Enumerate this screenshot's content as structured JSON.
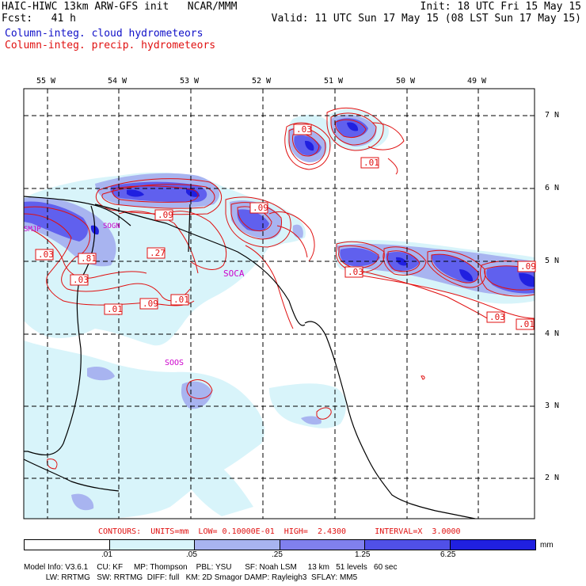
{
  "header": {
    "left_line1": "HAIC-HIWC 13km ARW-GFS init   NCAR/MMM",
    "left_line2": "Fcst:   41 h",
    "right_line1": "Init: 18 UTC Fri 15 May 15",
    "right_line2": "Valid: 11 UTC Sun 17 May 15 (08 LST Sun 17 May 15)",
    "legend_cloud": "Column-integ. cloud hydrometeors",
    "legend_precip": "Column-integ. precip. hydrometeors"
  },
  "colors": {
    "cloud_light": "#d8f4fa",
    "cloud_mid": "#a8b4f0",
    "cloud_dark": "#6060ee",
    "cloud_max": "#2020e0",
    "contour": "#e01010",
    "place_label": "#cc00cc"
  },
  "lon_labels": [
    "55 W",
    "54 W",
    "53 W",
    "52 W",
    "51 W",
    "50 W",
    "49 W"
  ],
  "lat_labels": [
    "7 N",
    "6 N",
    "5 N",
    "4 N",
    "3 N",
    "2 N"
  ],
  "place_labels": [
    "SMJP",
    "SOCA",
    "SOOS",
    "SOGN"
  ],
  "contour_labels": [
    ".03",
    ".01",
    ".09",
    ".09",
    ".03",
    ".81",
    ".27",
    ".03",
    ".01",
    ".09",
    ".01",
    ".03",
    ".09",
    ".03",
    ".01"
  ],
  "contour_info": "CONTOURS:  UNITS=mm  LOW= 0.10000E-01  HIGH=  2.4300      INTERVAL=X  3.0000",
  "colorbar": {
    "ticks": [
      ".01",
      ".05",
      ".25",
      "1.25",
      "6.25"
    ],
    "unit": "mm",
    "colors": [
      "#ffffff",
      "#d8f4fa",
      "#a8b4f0",
      "#8080ee",
      "#5050e8",
      "#2020e0"
    ]
  },
  "footer": {
    "line1": "Model Info: V3.6.1    CU: KF     MP: Thompson    PBL: YSU      SF: Noah LSM     13 km   51 levels   60 sec",
    "line2": "          LW: RRTMG   SW: RRTMG  DIFF: full   KM: 2D Smagor DAMP: Rayleigh3  SFLAY: MM5"
  }
}
